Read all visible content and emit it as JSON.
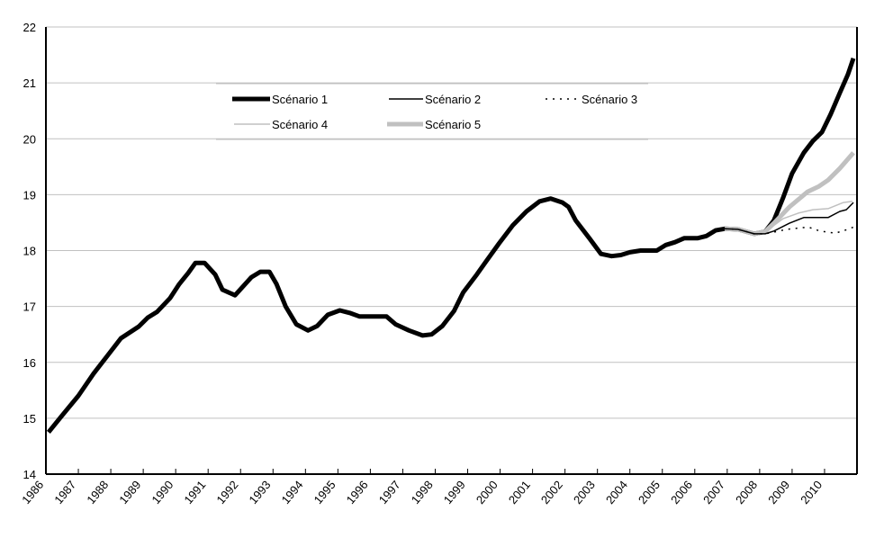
{
  "chart_data": {
    "type": "line",
    "title": "",
    "xlabel": "",
    "ylabel": "",
    "ylim": [
      14,
      22
    ],
    "xlim": [
      1986,
      2011
    ],
    "yticks": [
      "14",
      "15",
      "16",
      "17",
      "18",
      "19",
      "20",
      "21",
      "22"
    ],
    "xticks": [
      "1986",
      "1987",
      "1988",
      "1989",
      "1990",
      "1991",
      "1992",
      "1993",
      "1994",
      "1995",
      "1996",
      "1997",
      "1998",
      "1999",
      "2000",
      "2001",
      "2002",
      "2003",
      "2004",
      "2005",
      "2006",
      "2007",
      "2008",
      "2009",
      "2010"
    ],
    "grid": "horizontal",
    "legend_placement": "top-center",
    "series": [
      {
        "name": "Scénario 1",
        "color": "#000000",
        "style": "thick-solid",
        "x": [
          1986.08,
          1986.5,
          1987.0,
          1987.47,
          1987.94,
          1988.31,
          1988.86,
          1989.14,
          1989.42,
          1989.83,
          1990.11,
          1990.39,
          1990.61,
          1990.89,
          1991.22,
          1991.44,
          1991.83,
          1992.33,
          1992.61,
          1992.89,
          1993.11,
          1993.39,
          1993.72,
          1994.08,
          1994.36,
          1994.69,
          1995.06,
          1995.39,
          1995.67,
          1996.5,
          1996.78,
          1997.19,
          1997.61,
          1997.89,
          1998.22,
          1998.58,
          1998.86,
          1999.28,
          1999.56,
          1999.97,
          2000.39,
          2000.81,
          2001.22,
          2001.56,
          2001.92,
          2002.11,
          2002.33,
          2002.75,
          2003.11,
          2003.44,
          2003.72,
          2004.0,
          2004.33,
          2004.83,
          2005.11,
          2005.39,
          2005.67,
          2006.08,
          2006.36,
          2006.64,
          2006.92,
          2007.33,
          2007.83,
          2008.17,
          2008.44,
          2008.72,
          2009.0,
          2009.36,
          2009.64,
          2009.92,
          2010.19,
          2010.47,
          2010.72,
          2010.89
        ],
        "y": [
          14.75,
          15.05,
          15.4,
          15.8,
          16.15,
          16.43,
          16.64,
          16.8,
          16.9,
          17.15,
          17.4,
          17.6,
          17.78,
          17.78,
          17.57,
          17.3,
          17.2,
          17.52,
          17.62,
          17.62,
          17.4,
          17.0,
          16.68,
          16.57,
          16.65,
          16.85,
          16.93,
          16.88,
          16.82,
          16.82,
          16.68,
          16.57,
          16.48,
          16.5,
          16.65,
          16.92,
          17.25,
          17.57,
          17.8,
          18.13,
          18.45,
          18.7,
          18.88,
          18.93,
          18.86,
          18.78,
          18.54,
          18.22,
          17.94,
          17.9,
          17.92,
          17.97,
          18.0,
          18.0,
          18.1,
          18.15,
          18.22,
          18.22,
          18.26,
          18.36,
          18.39,
          18.38,
          18.3,
          18.34,
          18.54,
          18.94,
          19.38,
          19.75,
          19.96,
          20.12,
          20.44,
          20.82,
          21.15,
          21.44
        ]
      },
      {
        "name": "Scénario 2",
        "color": "#000000",
        "style": "thin-solid",
        "x": [
          2006.92,
          2007.33,
          2007.83,
          2008.17,
          2008.44,
          2008.92,
          2009.36,
          2010.11,
          2010.47,
          2010.67,
          2010.89
        ],
        "y": [
          18.39,
          18.38,
          18.3,
          18.3,
          18.35,
          18.49,
          18.59,
          18.59,
          18.7,
          18.73,
          18.86
        ]
      },
      {
        "name": "Scénario 3",
        "color": "#000000",
        "style": "dotted",
        "x": [
          2006.92,
          2007.33,
          2007.83,
          2008.17,
          2008.44,
          2008.83,
          2009.5,
          2009.86,
          2010.33,
          2010.72,
          2010.89
        ],
        "y": [
          18.39,
          18.38,
          18.3,
          18.3,
          18.33,
          18.38,
          18.42,
          18.35,
          18.31,
          18.38,
          18.42
        ]
      },
      {
        "name": "Scénario 4",
        "color": "#c0c0c0",
        "style": "thin-solid",
        "x": [
          2006.92,
          2007.33,
          2007.83,
          2008.17,
          2008.44,
          2008.72,
          2009.19,
          2009.64,
          2010.11,
          2010.58,
          2010.86
        ],
        "y": [
          18.39,
          18.38,
          18.3,
          18.32,
          18.45,
          18.57,
          18.67,
          18.73,
          18.75,
          18.86,
          18.88
        ]
      },
      {
        "name": "Scénario 5",
        "color": "#c0c0c0",
        "style": "thick-solid",
        "x": [
          2006.92,
          2007.33,
          2007.83,
          2008.17,
          2008.44,
          2008.92,
          2009.47,
          2009.83,
          2010.11,
          2010.47,
          2010.89
        ],
        "y": [
          18.39,
          18.38,
          18.3,
          18.34,
          18.49,
          18.78,
          19.05,
          19.15,
          19.26,
          19.47,
          19.75
        ]
      }
    ]
  }
}
